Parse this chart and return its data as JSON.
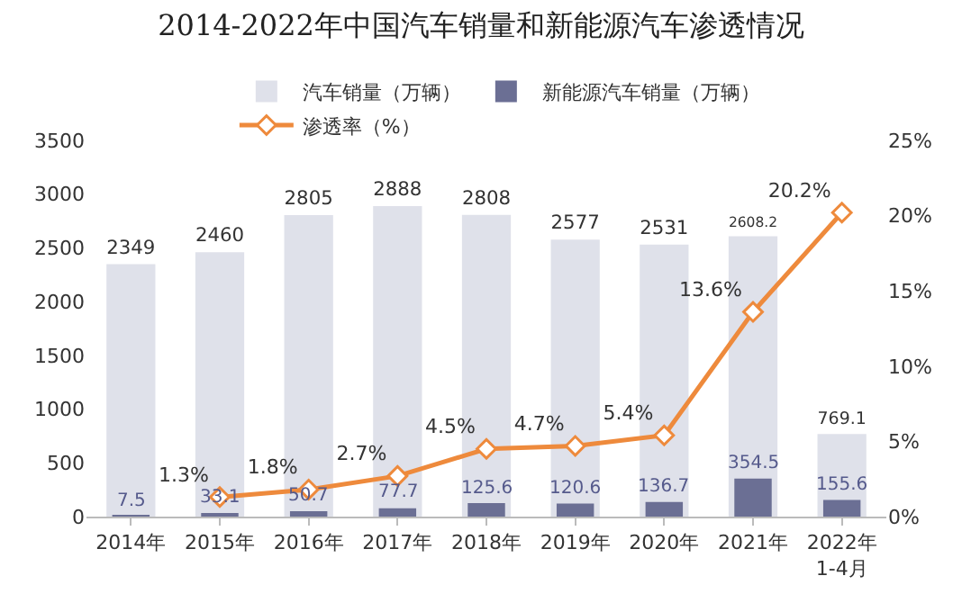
{
  "chart_data": {
    "type": "bar",
    "title": "2014-2022年中国汽车销量和新能源汽车渗透情况",
    "categories": [
      "2014年",
      "2015年",
      "2016年",
      "2017年",
      "2018年",
      "2019年",
      "2020年",
      "2021年",
      "2022年\n1-4月"
    ],
    "series": [
      {
        "name": "汽车销量（万辆）",
        "color": "#dfe1ea",
        "values": [
          2349,
          2460,
          2805,
          2888,
          2808,
          2577,
          2531,
          2608.2,
          769.1
        ]
      },
      {
        "name": "新能源汽车销量（万辆）",
        "color": "#6b6f94",
        "values": [
          7.5,
          33.1,
          50.7,
          77.7,
          125.6,
          120.6,
          136.7,
          354.5,
          155.6
        ]
      },
      {
        "name": "渗透率（%）",
        "type": "line",
        "axis": "y2",
        "color": "#ee8a3c",
        "values": [
          null,
          1.3,
          1.8,
          2.7,
          4.5,
          4.7,
          5.4,
          13.6,
          20.2
        ],
        "value_labels": [
          null,
          "1.3%",
          "1.8%",
          "2.7%",
          "4.5%",
          "4.7%",
          "5.4%",
          "13.6%",
          "20.2%"
        ]
      }
    ],
    "ylim": [
      0,
      3500
    ],
    "yticks": [
      0,
      500,
      1000,
      1500,
      2000,
      2500,
      3000,
      3500
    ],
    "y2lim": [
      0,
      25
    ],
    "y2ticks": [
      {
        "value": 0,
        "label": "0%"
      },
      {
        "value": 5,
        "label": "5%"
      },
      {
        "value": 10,
        "label": "10%"
      },
      {
        "value": 15,
        "label": "15%"
      },
      {
        "value": 20,
        "label": "20%"
      },
      {
        "value": 25,
        "label": "25%"
      }
    ],
    "data_labels": true,
    "legend": "top",
    "marker": "diamond",
    "grid": false
  }
}
